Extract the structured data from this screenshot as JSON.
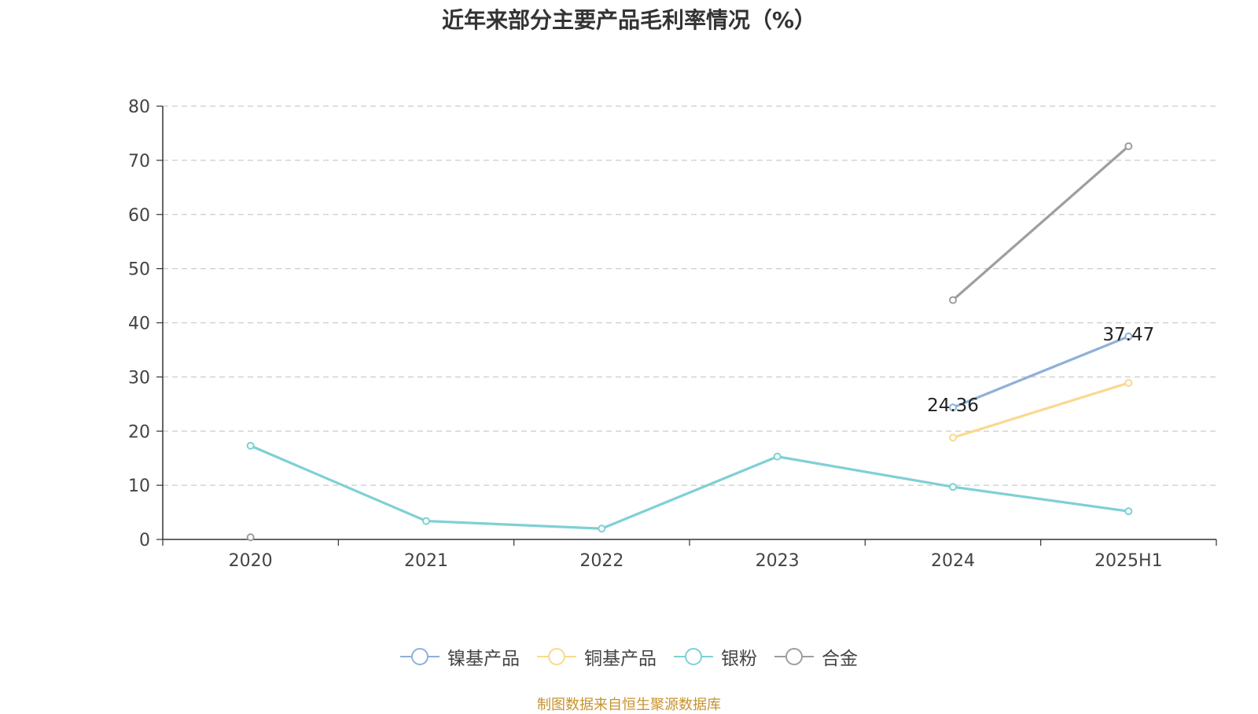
{
  "chart_data": {
    "type": "line",
    "title": "近年来部分主要产品毛利率情况（%）",
    "categories": [
      "2020",
      "2021",
      "2022",
      "2023",
      "2024",
      "2025H1"
    ],
    "ylim": [
      0,
      80
    ],
    "yticks": [
      0,
      10,
      20,
      30,
      40,
      50,
      60,
      70,
      80
    ],
    "grid": true,
    "legend_position": "bottom",
    "series": [
      {
        "name": "镍基产品",
        "color": "#8fb0d9",
        "values": [
          null,
          null,
          null,
          null,
          24.36,
          37.47
        ],
        "labels": [
          null,
          null,
          null,
          null,
          "24.36",
          "37.47"
        ]
      },
      {
        "name": "铜基产品",
        "color": "#f9d98e",
        "values": [
          null,
          null,
          null,
          null,
          18.8,
          28.9
        ],
        "labels": [
          null,
          null,
          null,
          null,
          null,
          null
        ]
      },
      {
        "name": "银粉",
        "color": "#7fd0d4",
        "values": [
          17.3,
          3.4,
          2.0,
          15.3,
          9.7,
          5.2
        ],
        "labels": [
          null,
          null,
          null,
          null,
          null,
          null
        ]
      },
      {
        "name": "合金",
        "color": "#9e9e9e",
        "values": [
          0.4,
          null,
          null,
          null,
          44.2,
          72.6
        ],
        "labels": [
          null,
          null,
          null,
          null,
          null,
          null
        ]
      }
    ]
  },
  "source": "制图数据来自恒生聚源数据库"
}
